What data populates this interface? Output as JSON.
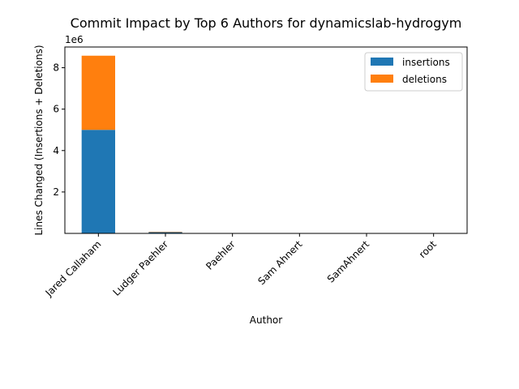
{
  "chart_data": {
    "type": "bar",
    "stacked": true,
    "title": "Commit Impact by Top 6 Authors for dynamicslab-hydrogym",
    "xlabel": "Author",
    "ylabel": "Lines Changed (Insertions + Deletions)",
    "y_offset_label": "1e6",
    "categories": [
      "Jared Callaham",
      "Ludger Paehler",
      "Paehler",
      "Sam Ahnert",
      "SamAhnert",
      "root"
    ],
    "series": [
      {
        "name": "insertions",
        "color": "#1f77b4",
        "values": [
          5000000,
          60000,
          500,
          300,
          200,
          100
        ]
      },
      {
        "name": "deletions",
        "color": "#ff7f0e",
        "values": [
          3580000,
          20000,
          200,
          100,
          100,
          50
        ]
      }
    ],
    "ylim": [
      0,
      9000000
    ],
    "yticks": [
      2000000,
      4000000,
      6000000,
      8000000
    ],
    "ytick_labels": [
      "2",
      "4",
      "6",
      "8"
    ],
    "legend": "top-right",
    "grid": false
  }
}
